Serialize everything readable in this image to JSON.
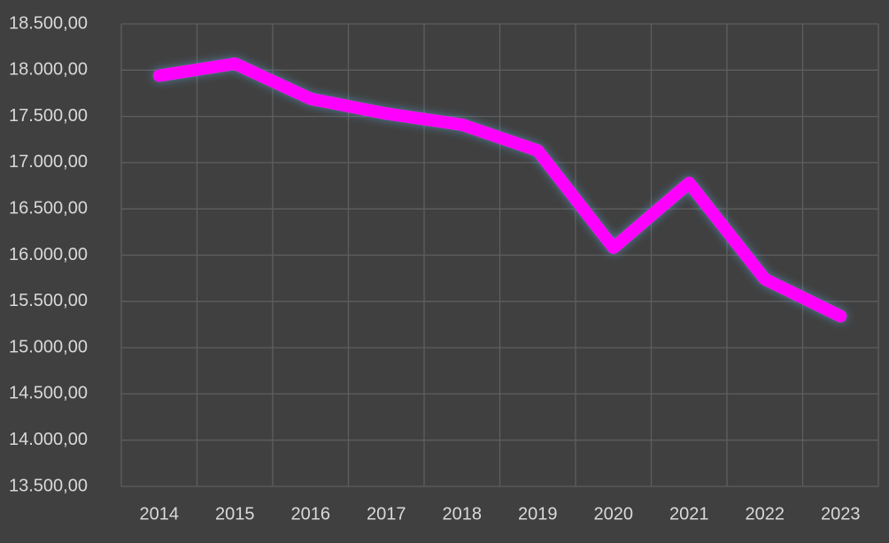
{
  "chart_data": {
    "type": "line",
    "categories": [
      "2014",
      "2015",
      "2016",
      "2017",
      "2018",
      "2019",
      "2020",
      "2021",
      "2022",
      "2023"
    ],
    "series": [
      {
        "color": "#ff00ff",
        "values": [
          17940,
          18070,
          17690,
          17530,
          17410,
          17130,
          16080,
          16780,
          15740,
          15340
        ]
      }
    ],
    "ylim": [
      13500,
      18500
    ],
    "yticks": [
      {
        "value": 13500,
        "label": "13.500,00"
      },
      {
        "value": 14000,
        "label": "14.000,00"
      },
      {
        "value": 14500,
        "label": "14.500,00"
      },
      {
        "value": 15000,
        "label": "15.000,00"
      },
      {
        "value": 15500,
        "label": "15.500,00"
      },
      {
        "value": 16000,
        "label": "16.000,00"
      },
      {
        "value": 16500,
        "label": "16.500,00"
      },
      {
        "value": 17000,
        "label": "17.000,00"
      },
      {
        "value": 17500,
        "label": "17.500,00"
      },
      {
        "value": 18000,
        "label": "18.000,00"
      },
      {
        "value": 18500,
        "label": "18.500,00"
      }
    ],
    "grid": true
  }
}
